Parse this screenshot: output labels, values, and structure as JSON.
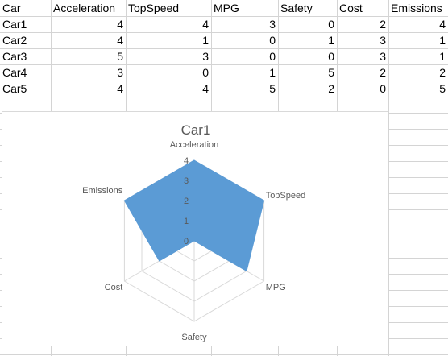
{
  "sheet": {
    "headers": [
      "Car",
      "Acceleration",
      "TopSpeed",
      "MPG",
      "Safety",
      "Cost",
      "Emissions"
    ],
    "rows": [
      {
        "car": "Car1",
        "values": [
          4,
          4,
          3,
          0,
          2,
          4
        ]
      },
      {
        "car": "Car2",
        "values": [
          4,
          1,
          0,
          1,
          3,
          1
        ]
      },
      {
        "car": "Car3",
        "values": [
          5,
          3,
          0,
          0,
          3,
          1
        ]
      },
      {
        "car": "Car4",
        "values": [
          3,
          0,
          1,
          5,
          2,
          2
        ]
      },
      {
        "car": "Car5",
        "values": [
          4,
          4,
          5,
          2,
          0,
          5
        ]
      }
    ]
  },
  "chart_data": {
    "type": "radar",
    "title": "Car1",
    "categories": [
      "Acceleration",
      "TopSpeed",
      "MPG",
      "Safety",
      "Cost",
      "Emissions"
    ],
    "values": [
      4,
      4,
      3,
      0,
      2,
      4
    ],
    "rlim": [
      0,
      4
    ],
    "ticks": [
      0,
      1,
      2,
      3,
      4
    ],
    "fill_color": "#5b9bd5",
    "grid_color": "#d9d9d9",
    "legend": "none"
  }
}
